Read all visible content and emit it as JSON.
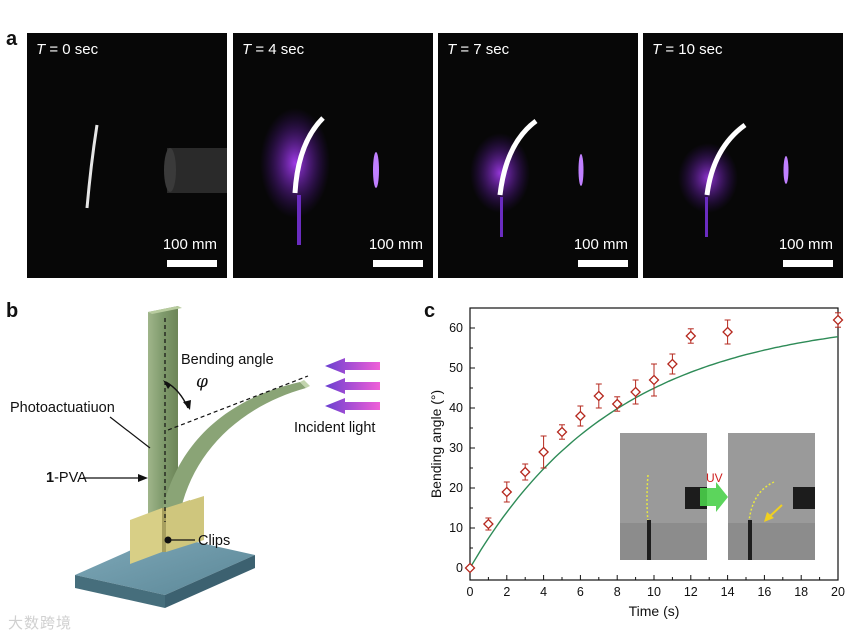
{
  "panel_a": {
    "letter": "a",
    "frames": [
      {
        "t_var": "T",
        "t_text": " = 0 sec",
        "scale": "100 mm",
        "bend": 0
      },
      {
        "t_var": "T",
        "t_text": " = 4 sec",
        "scale": "100 mm",
        "bend": 1
      },
      {
        "t_var": "T",
        "t_text": " = 7 sec",
        "scale": "100 mm",
        "bend": 2
      },
      {
        "t_var": "T",
        "t_text": " = 10 sec",
        "scale": "100 mm",
        "bend": 3
      }
    ]
  },
  "panel_b": {
    "letter": "b",
    "bending_angle": "Bending angle",
    "phi": "φ",
    "photoactuation": "Photoactuatiuon",
    "pva_bold": "1",
    "pva_rest": "-PVA",
    "incident_light": "Incident light",
    "clips": "Clips"
  },
  "panel_c": {
    "letter": "c",
    "inset_uv": "UV"
  },
  "chart_data": {
    "type": "scatter",
    "xlabel": "Time (s)",
    "ylabel": "Bending angle (°)",
    "xlim": [
      0,
      20
    ],
    "ylim": [
      -3,
      65
    ],
    "xticks": [
      0,
      2,
      4,
      6,
      8,
      10,
      12,
      14,
      16,
      18,
      20
    ],
    "yticks": [
      0,
      10,
      20,
      30,
      40,
      50,
      60
    ],
    "points": [
      {
        "x": 0,
        "y": 0,
        "err": 0
      },
      {
        "x": 1,
        "y": 11,
        "err": 1.5
      },
      {
        "x": 2,
        "y": 19,
        "err": 2.5
      },
      {
        "x": 3,
        "y": 24,
        "err": 2
      },
      {
        "x": 4,
        "y": 29,
        "err": 4
      },
      {
        "x": 5,
        "y": 34,
        "err": 1.8
      },
      {
        "x": 6,
        "y": 38,
        "err": 2.5
      },
      {
        "x": 7,
        "y": 43,
        "err": 3
      },
      {
        "x": 8,
        "y": 41,
        "err": 1.8
      },
      {
        "x": 9,
        "y": 44,
        "err": 3
      },
      {
        "x": 10,
        "y": 47,
        "err": 4
      },
      {
        "x": 11,
        "y": 51,
        "err": 2.5
      },
      {
        "x": 12,
        "y": 58,
        "err": 1.8
      },
      {
        "x": 14,
        "y": 59,
        "err": 3
      },
      {
        "x": 20,
        "y": 62,
        "err": 1.8
      }
    ],
    "fit": {
      "amplitude": 63,
      "tau": 8
    },
    "marker_color": "#b5281e",
    "fit_color": "#2e8b57",
    "legend": "none",
    "grid": false
  },
  "watermark": "大数跨境"
}
